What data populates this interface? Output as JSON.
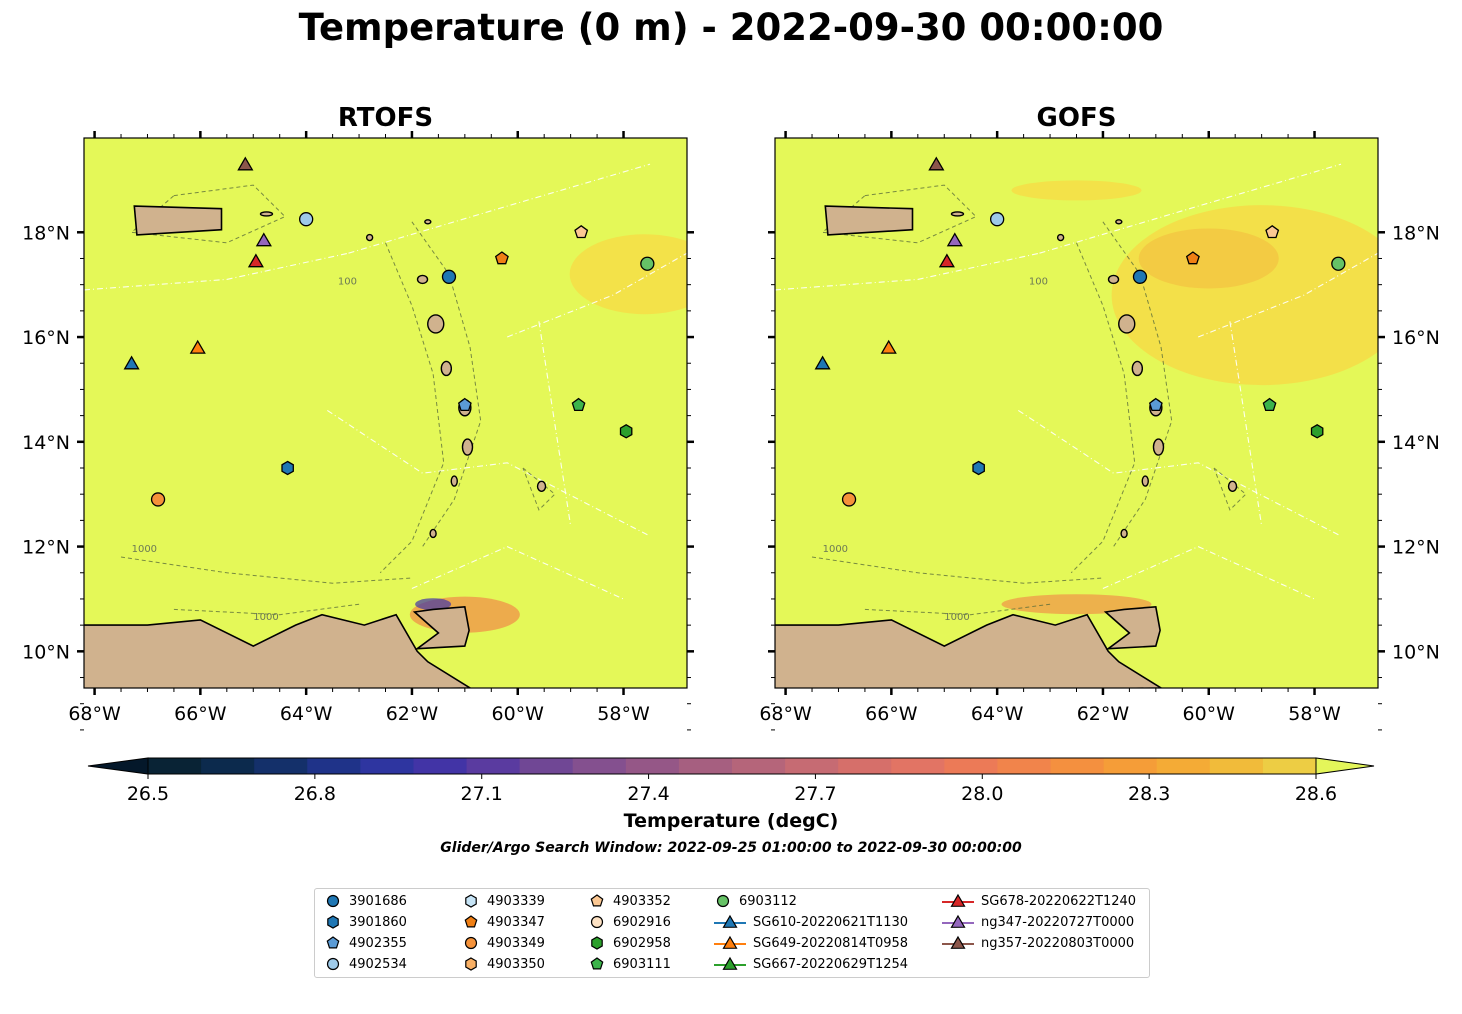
{
  "figure_title": "Temperature (0 m) - 2022-09-30 00:00:00",
  "panels": [
    {
      "title": "RTOFS"
    },
    {
      "title": "GOFS"
    }
  ],
  "axes": {
    "lon_ticks": [
      "68°W",
      "66°W",
      "64°W",
      "62°W",
      "60°W",
      "58°W"
    ],
    "lat_ticks": [
      "18°N",
      "16°N",
      "14°N",
      "12°N",
      "10°N"
    ],
    "lon_range": [
      -68.2,
      -56.8
    ],
    "lat_range": [
      9.3,
      19.8
    ]
  },
  "colorbar": {
    "label": "Temperature (degC)",
    "ticks": [
      "26.5",
      "26.8",
      "27.1",
      "27.4",
      "27.7",
      "28.0",
      "28.3",
      "28.6"
    ],
    "vmin": 26.5,
    "vmax": 28.6,
    "colors": [
      "#092335",
      "#0c2a4d",
      "#14306a",
      "#1f3389",
      "#2e35a0",
      "#4234a6",
      "#5a3ba0",
      "#704795",
      "#84508f",
      "#955787",
      "#a65f80",
      "#b5657a",
      "#c66b73",
      "#d66f6a",
      "#e27464",
      "#ec7a57",
      "#f1844b",
      "#f4903f",
      "#f59d38",
      "#f4ab36",
      "#f1bb3a",
      "#edcd44"
    ],
    "extend_low_color": "#04182a",
    "extend_high_color": "#e4f65a"
  },
  "search_window": "Glider/Argo Search Window: 2022-09-25 01:00:00 to 2022-09-30 00:00:00",
  "contour_labels": [
    "100",
    "1000"
  ],
  "colors": {
    "ocean": "#e4f858",
    "land": "#d0b28e",
    "warm_patch": "#f6dc46"
  },
  "legend": {
    "columns": [
      [
        {
          "label": "3901686",
          "marker": "circle",
          "color": "#1f77b4"
        },
        {
          "label": "3901860",
          "marker": "hexagon",
          "color": "#1f77b4"
        },
        {
          "label": "4902355",
          "marker": "pentagon",
          "color": "#5b9bd5"
        },
        {
          "label": "4902534",
          "marker": "circle",
          "color": "#9ecae9"
        }
      ],
      [
        {
          "label": "4903339",
          "marker": "hexagon",
          "color": "#c6e4f6"
        },
        {
          "label": "4903347",
          "marker": "pentagon",
          "color": "#f07f14"
        },
        {
          "label": "4903349",
          "marker": "circle",
          "color": "#f5923a"
        },
        {
          "label": "4903350",
          "marker": "hexagon",
          "color": "#f9b065"
        }
      ],
      [
        {
          "label": "4903352",
          "marker": "pentagon",
          "color": "#fcc893"
        },
        {
          "label": "6902916",
          "marker": "circle",
          "color": "#fde2c4"
        },
        {
          "label": "6902958",
          "marker": "hexagon",
          "color": "#2ca02c"
        },
        {
          "label": "6903111",
          "marker": "pentagon",
          "color": "#3cb44b"
        }
      ],
      [
        {
          "label": "6903112",
          "marker": "circle",
          "color": "#66c266"
        },
        {
          "label": "SG610-20220621T1130",
          "marker": "triangle-line",
          "color": "#1f77b4"
        },
        {
          "label": "SG649-20220814T0958",
          "marker": "triangle-line",
          "color": "#ff7f0e"
        },
        {
          "label": "SG667-20220629T1254",
          "marker": "triangle-line",
          "color": "#2ca02c"
        }
      ],
      [
        {
          "label": "SG678-20220622T1240",
          "marker": "triangle-line",
          "color": "#d62728"
        },
        {
          "label": "ng347-20220727T0000",
          "marker": "triangle-line",
          "color": "#9467bd"
        },
        {
          "label": "ng357-20220803T0000",
          "marker": "triangle-line",
          "color": "#8c564b"
        }
      ]
    ]
  },
  "map_markers": [
    {
      "id": "3901686",
      "marker": "circle",
      "color": "#1f77b4",
      "lon": -61.3,
      "lat": 17.15
    },
    {
      "id": "3901860",
      "marker": "hexagon",
      "color": "#1f77b4",
      "lon": -64.35,
      "lat": 13.5
    },
    {
      "id": "4902355",
      "marker": "pentagon",
      "color": "#5b9bd5",
      "lon": -61.0,
      "lat": 14.7
    },
    {
      "id": "4902534",
      "marker": "circle",
      "color": "#9ecae9",
      "lon": -64.0,
      "lat": 18.25
    },
    {
      "id": "4903347",
      "marker": "pentagon",
      "color": "#f07f14",
      "lon": -60.3,
      "lat": 17.5
    },
    {
      "id": "4903349",
      "marker": "circle",
      "color": "#f5923a",
      "lon": -66.8,
      "lat": 12.9
    },
    {
      "id": "4903352",
      "marker": "pentagon",
      "color": "#fcc893",
      "lon": -58.8,
      "lat": 18.0
    },
    {
      "id": "6902958",
      "marker": "hexagon",
      "color": "#2ca02c",
      "lon": -57.95,
      "lat": 14.2
    },
    {
      "id": "6903111",
      "marker": "pentagon",
      "color": "#3cb44b",
      "lon": -58.85,
      "lat": 14.7
    },
    {
      "id": "6903112",
      "marker": "circle",
      "color": "#66c266",
      "lon": -57.55,
      "lat": 17.4
    },
    {
      "id": "SG610-20220621T1130",
      "marker": "triangle",
      "color": "#1f77b4",
      "lon": -67.3,
      "lat": 15.5
    },
    {
      "id": "SG649-20220814T0958",
      "marker": "triangle",
      "color": "#ff7f0e",
      "lon": -66.05,
      "lat": 15.8
    },
    {
      "id": "SG678-20220622T1240",
      "marker": "triangle",
      "color": "#d62728",
      "lon": -64.95,
      "lat": 17.45
    },
    {
      "id": "ng347-20220727T0000",
      "marker": "triangle",
      "color": "#9467bd",
      "lon": -64.8,
      "lat": 17.85
    },
    {
      "id": "ng357-20220803T0000",
      "marker": "triangle",
      "color": "#8c564b",
      "lon": -65.15,
      "lat": 19.3
    }
  ]
}
